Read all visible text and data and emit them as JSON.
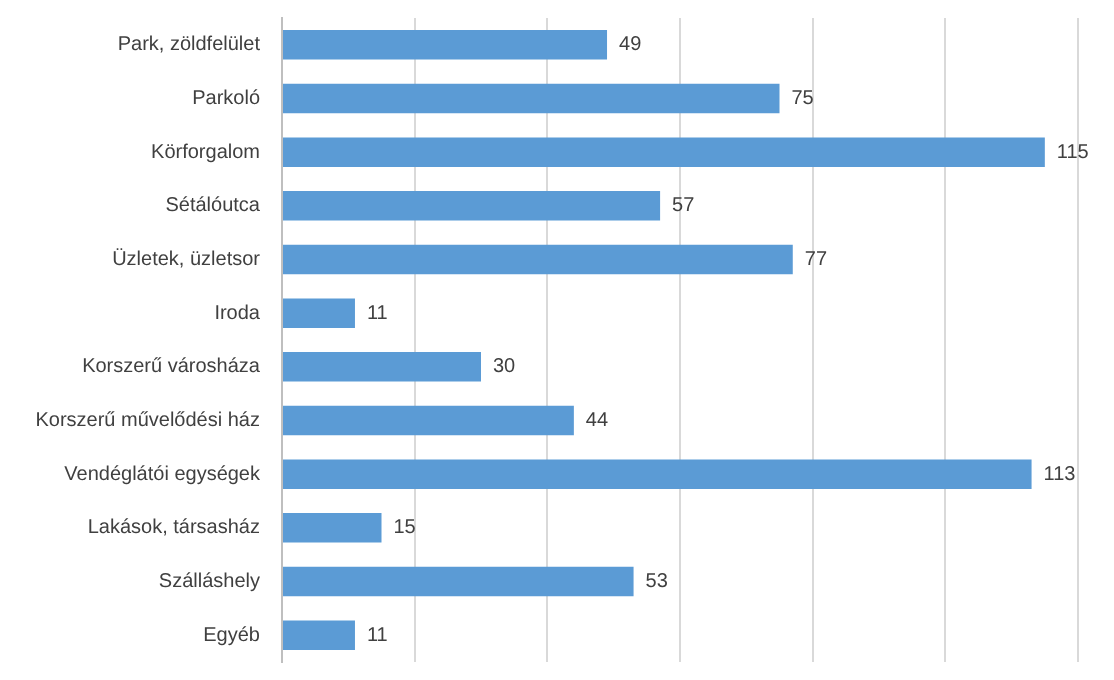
{
  "chart_data": {
    "type": "bar",
    "orientation": "horizontal",
    "categories": [
      "Park, zöldfelület",
      "Parkoló",
      "Körforgalom",
      "Sétálóutca",
      "Üzletek, üzletsor",
      "Iroda",
      "Korszerű városháza",
      "Korszerű művelődési ház",
      "Vendéglátói egységek",
      "Lakások, társasház",
      "Szálláshely",
      "Egyéb"
    ],
    "values": [
      49,
      75,
      115,
      57,
      77,
      11,
      30,
      44,
      113,
      15,
      53,
      11
    ],
    "color": "#5b9bd5",
    "xlim": [
      0,
      120
    ],
    "xticks": [
      0,
      20,
      40,
      60,
      80,
      100,
      120
    ],
    "tick_labels": "y",
    "grid": "x",
    "data_labels": true,
    "legend": false
  }
}
